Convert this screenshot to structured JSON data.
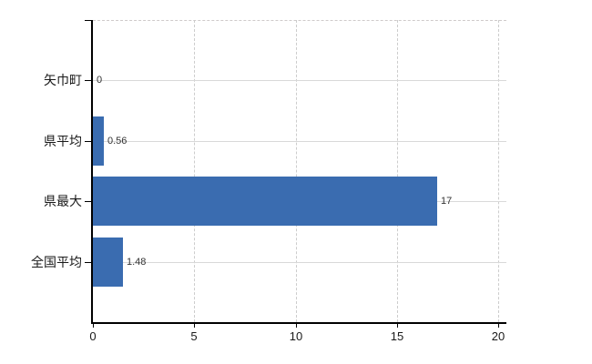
{
  "chart_data": {
    "type": "bar",
    "orientation": "horizontal",
    "title": "",
    "xlabel": "",
    "ylabel": "",
    "categories": [
      "矢巾町",
      "県平均",
      "県最大",
      "全国平均"
    ],
    "values": [
      0,
      0.56,
      17,
      1.48
    ],
    "value_labels": [
      "0",
      "0.56",
      "17",
      "1.48"
    ],
    "xticks": [
      0,
      5,
      10,
      15,
      20
    ],
    "xtick_labels": [
      "0",
      "5",
      "10",
      "15",
      "20"
    ],
    "xlim": [
      0,
      20.4
    ],
    "grid": true,
    "legend": false,
    "colors": {
      "bar": "#3a6cb0",
      "axis": "#000000",
      "text": "#1a1a1a",
      "value_text": "#333333",
      "grid_horizontal": "#d9d9d9",
      "grid_vertical": "#cccccc",
      "background": "#ffffff"
    }
  }
}
